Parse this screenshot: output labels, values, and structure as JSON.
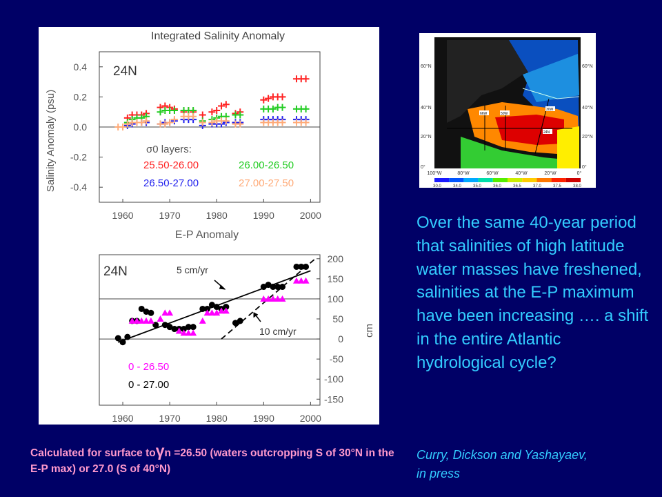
{
  "chart_data": [
    {
      "type": "scatter",
      "title": "Integrated Salinity Anomaly",
      "panel_label": "24N",
      "ylabel": "Salinity Anomaly (psu)",
      "xlabel": "E-P Anomaly",
      "xlim": [
        1955,
        2002
      ],
      "ylim": [
        -0.5,
        0.5
      ],
      "xticks": [
        "1960",
        "1970",
        "1980",
        "1990",
        "2000"
      ],
      "yticks": [
        "0.4",
        "0.2",
        "0.0",
        "-0.2",
        "-0.4"
      ],
      "legend_title": "σ0 layers:",
      "series": [
        {
          "name": "25.50-26.00",
          "color": "#ff2222",
          "x": [
            1961,
            1962,
            1963,
            1964,
            1965,
            1968,
            1969,
            1970,
            1971,
            1973,
            1974,
            1975,
            1977,
            1979,
            1980,
            1981,
            1982,
            1984,
            1985,
            1990,
            1991,
            1992,
            1993,
            1994,
            1997,
            1998,
            1999
          ],
          "values": [
            0.06,
            0.08,
            0.08,
            0.08,
            0.09,
            0.13,
            0.14,
            0.13,
            0.12,
            0.1,
            0.11,
            0.1,
            0.08,
            0.1,
            0.11,
            0.14,
            0.15,
            0.09,
            0.1,
            0.18,
            0.19,
            0.2,
            0.2,
            0.2,
            0.32,
            0.32,
            0.32
          ]
        },
        {
          "name": "26.00-26.50",
          "color": "#22cc22",
          "x": [
            1961,
            1962,
            1963,
            1964,
            1965,
            1968,
            1969,
            1970,
            1971,
            1973,
            1974,
            1975,
            1977,
            1979,
            1980,
            1981,
            1982,
            1984,
            1985,
            1990,
            1991,
            1992,
            1993,
            1994,
            1997,
            1998,
            1999
          ],
          "values": [
            0.03,
            0.05,
            0.06,
            0.06,
            0.07,
            0.1,
            0.11,
            0.11,
            0.11,
            0.11,
            0.11,
            0.11,
            0.04,
            0.05,
            0.06,
            0.07,
            0.07,
            0.08,
            0.08,
            0.12,
            0.12,
            0.12,
            0.13,
            0.13,
            0.12,
            0.12,
            0.12
          ]
        },
        {
          "name": "26.50-27.00",
          "color": "#2222ee",
          "x": [
            1961,
            1962,
            1963,
            1964,
            1965,
            1968,
            1969,
            1970,
            1971,
            1973,
            1974,
            1975,
            1977,
            1979,
            1980,
            1981,
            1982,
            1984,
            1985,
            1990,
            1991,
            1992,
            1993,
            1994,
            1997,
            1998,
            1999
          ],
          "values": [
            0.01,
            0.02,
            0.03,
            0.03,
            0.03,
            0.02,
            0.03,
            0.03,
            0.04,
            0.05,
            0.05,
            0.05,
            0.01,
            0.02,
            0.02,
            0.02,
            0.03,
            0.03,
            0.03,
            0.05,
            0.05,
            0.05,
            0.05,
            0.05,
            0.05,
            0.05,
            0.05
          ]
        },
        {
          "name": "27.00-27.50",
          "color": "#ffaa77",
          "x": [
            1959,
            1960,
            1961,
            1962,
            1963,
            1964,
            1965,
            1968,
            1969,
            1970,
            1971,
            1973,
            1974,
            1975,
            1977,
            1979,
            1980,
            1981,
            1982,
            1984,
            1985,
            1990,
            1991,
            1992,
            1993,
            1994,
            1997,
            1998,
            1999
          ],
          "values": [
            0.0,
            0.0,
            0.02,
            0.03,
            0.03,
            0.03,
            0.04,
            0.02,
            0.02,
            0.03,
            0.05,
            0.07,
            0.07,
            0.07,
            0.03,
            0.03,
            0.04,
            0.04,
            0.04,
            0.02,
            0.02,
            0.03,
            0.03,
            0.03,
            0.03,
            0.03,
            0.03,
            0.03,
            0.03
          ]
        }
      ]
    },
    {
      "type": "scatter",
      "panel_label": "24N",
      "ylabel": "cm",
      "xlim": [
        1955,
        2002
      ],
      "ylim": [
        -165,
        210
      ],
      "xticks": [
        "1960",
        "1970",
        "1980",
        "1990",
        "2000"
      ],
      "yticks": [
        "200",
        "150",
        "100",
        "50",
        "0",
        "-50",
        "-100",
        "-150"
      ],
      "annotations": [
        "5 cm/yr",
        "10 cm/yr"
      ],
      "series": [
        {
          "name": "0 - 27.00",
          "color": "#000000",
          "marker": "circle",
          "x": [
            1959,
            1960,
            1961,
            1962,
            1963,
            1964,
            1965,
            1966,
            1967,
            1969,
            1970,
            1971,
            1972,
            1973,
            1974,
            1975,
            1977,
            1978,
            1979,
            1980,
            1981,
            1982,
            1984,
            1985,
            1990,
            1991,
            1992,
            1993,
            1994,
            1997,
            1998,
            1999
          ],
          "values": [
            2,
            -8,
            5,
            45,
            45,
            75,
            68,
            65,
            35,
            35,
            30,
            25,
            25,
            25,
            30,
            30,
            75,
            75,
            85,
            80,
            75,
            80,
            40,
            45,
            130,
            135,
            130,
            130,
            130,
            180,
            180,
            180
          ]
        },
        {
          "name": "0 - 26.50",
          "color": "#ff00ff",
          "marker": "triangle",
          "x": [
            1962,
            1963,
            1964,
            1965,
            1966,
            1968,
            1969,
            1970,
            1972,
            1973,
            1974,
            1975,
            1977,
            1978,
            1979,
            1980,
            1981,
            1982,
            1990,
            1991,
            1992,
            1993,
            1994,
            1997,
            1998,
            1999
          ],
          "values": [
            45,
            45,
            45,
            45,
            45,
            50,
            65,
            65,
            20,
            15,
            15,
            15,
            45,
            65,
            65,
            65,
            70,
            70,
            100,
            100,
            100,
            100,
            100,
            145,
            145,
            145
          ]
        }
      ],
      "trend_lines": [
        {
          "label": "5 cm/yr",
          "x": [
            1959,
            2000
          ],
          "values": [
            -8,
            170
          ],
          "style": "solid"
        },
        {
          "label": "10 cm/yr",
          "x": [
            1981,
            2001
          ],
          "values": [
            0,
            200
          ],
          "style": "dashed"
        }
      ]
    }
  ],
  "map": {
    "lat_labels": [
      "60°N",
      "40°N",
      "20°N",
      "0°"
    ],
    "lon_labels": [
      "100°W",
      "80°W",
      "60°W",
      "40°W",
      "20°W",
      "0°"
    ],
    "region_labels": [
      "66W",
      "50W",
      "30W",
      "24N"
    ],
    "colorbar_labels": [
      "30.0",
      "34.0",
      "35.0",
      "36.0",
      "36.5",
      "37.0",
      "37.5",
      "38.0"
    ]
  },
  "body_text": "Over the same 40-year period that salinities of high latitude water masses have freshened, salinities at the E-P maximum have been increasing …. a shift in the entire Atlantic hydrological cycle?",
  "citation": "Curry, Dickson and Yashayaev, in press",
  "caption": {
    "part1": "Calculated for surface to",
    "gamma": "γ",
    "part2": "n =26.50 (waters outcropping S of 30°N in the E-P max)  or 27.0 (S of 40°N)"
  }
}
